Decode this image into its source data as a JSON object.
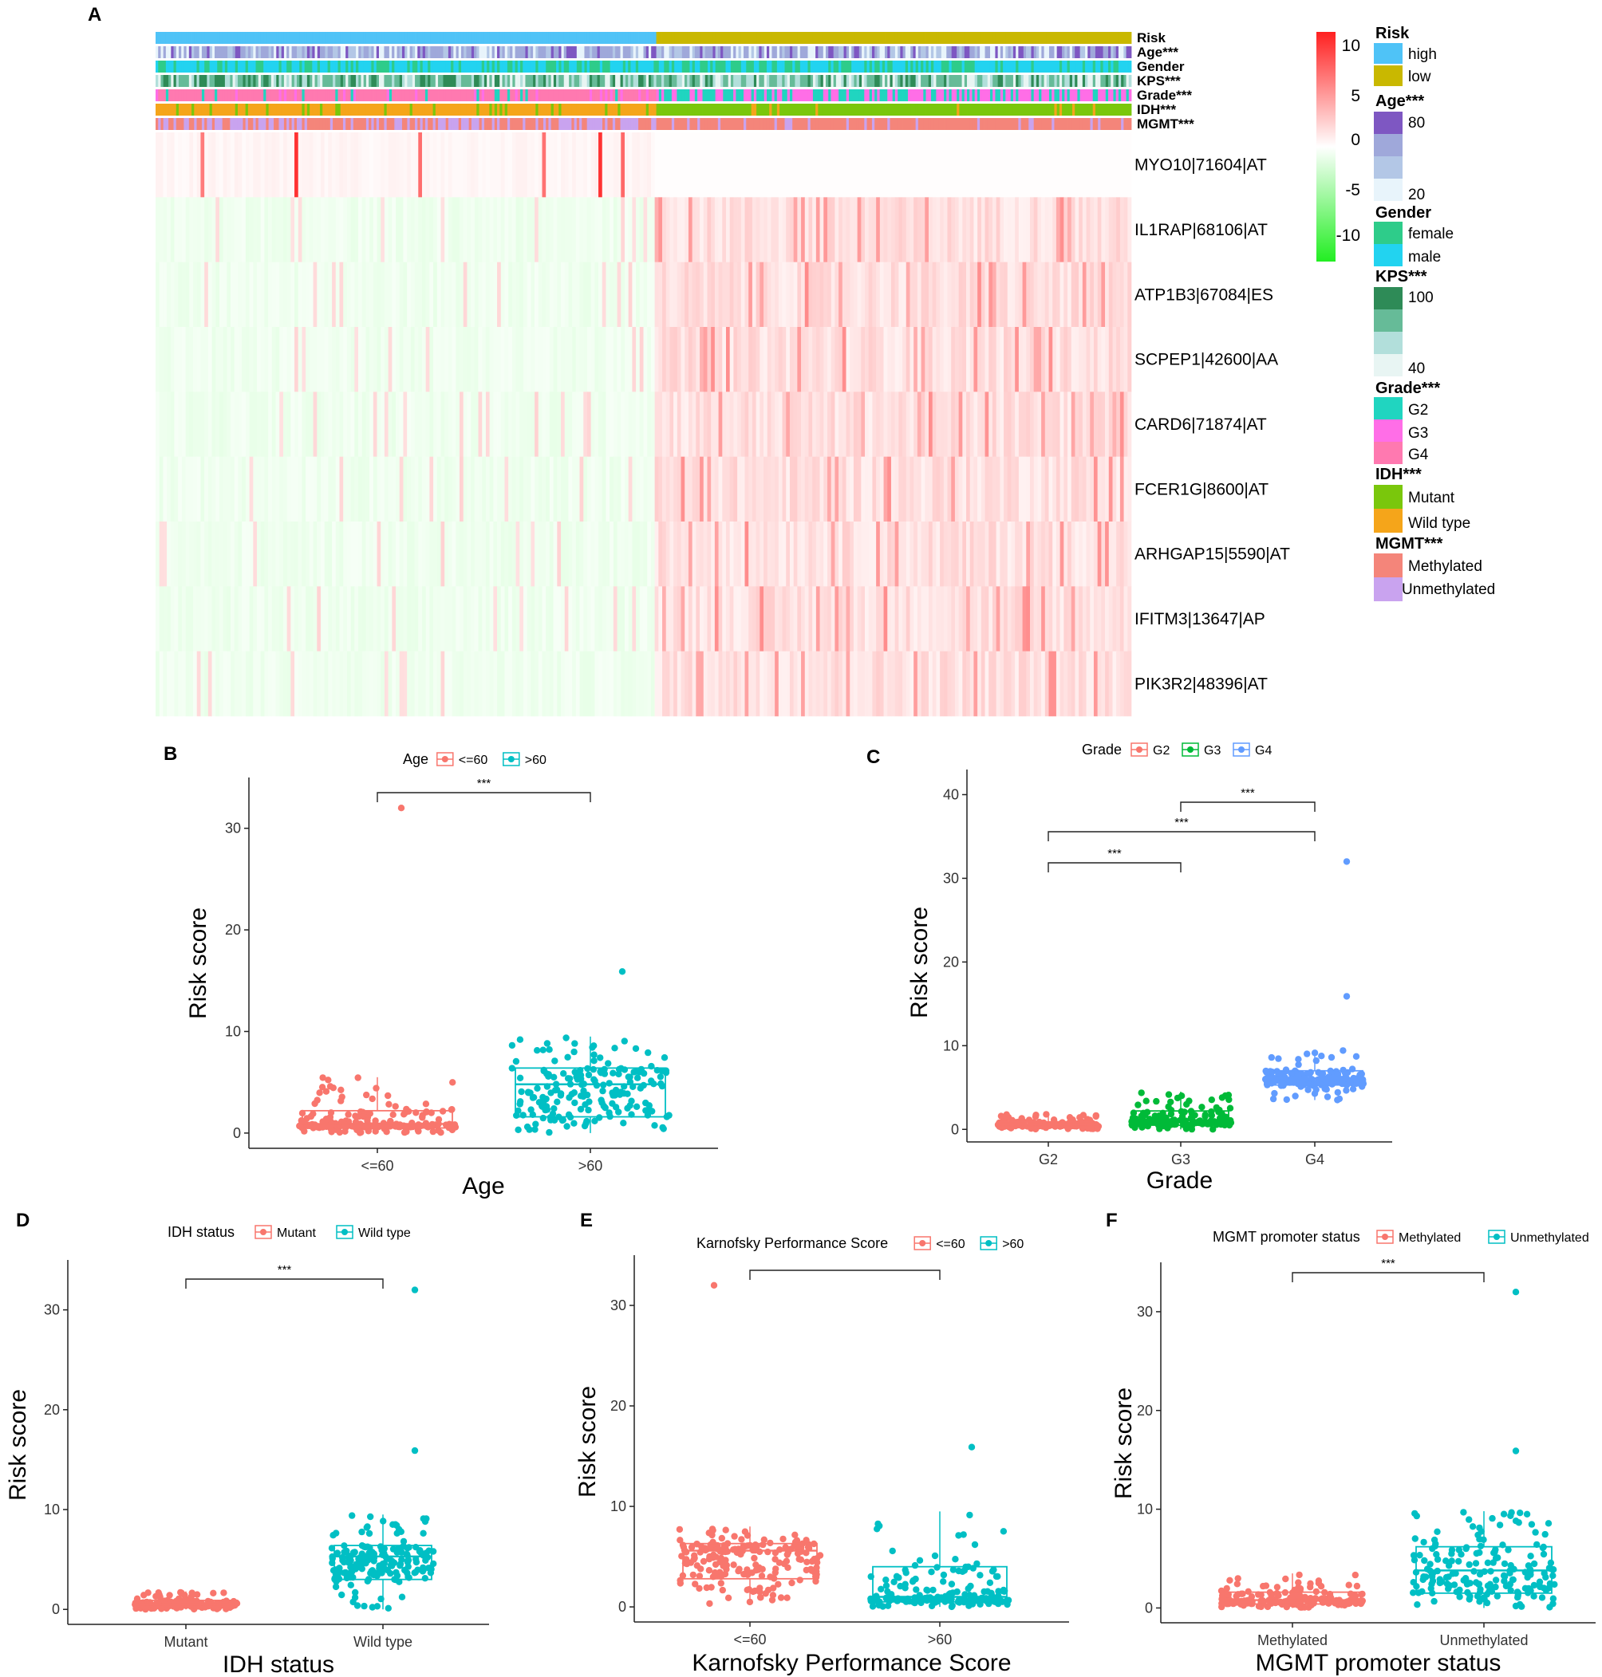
{
  "figure": {
    "description_free": true
  },
  "colors": {
    "risk_high": "#4fc3f7",
    "risk_low": "#c9b800",
    "age_80": "#7e57c2",
    "age_60": "#9fa8da",
    "age_40": "#b3c7e6",
    "age_20": "#e8f4fb",
    "gender_female": "#2ecc8a",
    "gender_male": "#22d3f0",
    "kps_100": "#2e8b57",
    "kps_80": "#66bb98",
    "kps_60": "#b2dfdb",
    "kps_40": "#e8f5f3",
    "grade_g2": "#20d5c0",
    "grade_g3": "#ff6ee7",
    "grade_g4": "#ff79b0",
    "idh_mutant": "#7ac70c",
    "idh_wild": "#f5a51a",
    "mgmt_meth": "#f4857a",
    "mgmt_unmeth": "#c9a3ef",
    "box_red": "#f8766d",
    "box_teal": "#00bfc4",
    "box_green": "#00ba38",
    "box_blue": "#619cff",
    "heat_high": "#ff2020",
    "heat_mid": "#ffffff",
    "heat_low": "#22ee22"
  },
  "panel_a": {
    "letter": "A",
    "annotation_rows": [
      "Risk",
      "Age***",
      "Gender",
      "KPS***",
      "Grade***",
      "IDH***",
      "MGMT***"
    ],
    "genes": [
      "MYO10|71604|AT",
      "IL1RAP|68106|AT",
      "ATP1B3|67084|ES",
      "SCPEP1|42600|AA",
      "CARD6|71874|AT",
      "FCER1G|8600|AT",
      "ARHGAP15|5590|AT",
      "IFITM3|13647|AP",
      "PIK3R2|48396|AT"
    ],
    "colorbar_ticks": [
      "10",
      "5",
      "0",
      "-5",
      "-10"
    ],
    "legend": {
      "risk": {
        "title": "Risk",
        "items": [
          "high",
          "low"
        ]
      },
      "age": {
        "title": "Age***",
        "items": [
          "80",
          "20"
        ]
      },
      "gender": {
        "title": "Gender",
        "items": [
          "female",
          "male"
        ]
      },
      "kps": {
        "title": "KPS***",
        "items": [
          "100",
          "40"
        ]
      },
      "grade": {
        "title": "Grade***",
        "items": [
          "G2",
          "G3",
          "G4"
        ]
      },
      "idh": {
        "title": "IDH***",
        "items": [
          "Mutant",
          "Wild type"
        ]
      },
      "mgmt": {
        "title": "MGMT***",
        "items": [
          "Methylated",
          "Unmethylated"
        ]
      }
    }
  },
  "chart_data": [
    {
      "panel": "B",
      "type": "box",
      "legend_title": "Age",
      "legend_items": [
        "<=60",
        ">60"
      ],
      "categories": [
        "<=60",
        ">60"
      ],
      "series": [
        {
          "name": "<=60",
          "min": 0,
          "q1": 0.5,
          "median": 0.9,
          "q3": 2.2,
          "max": 5.5,
          "outliers": [
            32
          ]
        },
        {
          "name": ">60",
          "min": 0,
          "q1": 1.6,
          "median": 4.8,
          "q3": 6.4,
          "max": 9.5,
          "outliers": [
            15.9
          ]
        }
      ],
      "ylabel": "Risk score",
      "xlabel": "Age",
      "ylim": [
        -1.5,
        35
      ],
      "yticks": [
        "0",
        "10",
        "20",
        "30"
      ],
      "significance": [
        {
          "from": "<=60",
          "to": ">60",
          "label": "***"
        }
      ]
    },
    {
      "panel": "C",
      "type": "box",
      "legend_title": "Grade",
      "legend_items": [
        "G2",
        "G3",
        "G4"
      ],
      "categories": [
        "G2",
        "G3",
        "G4"
      ],
      "series": [
        {
          "name": "G2",
          "min": 0,
          "q1": 0.3,
          "median": 0.6,
          "q3": 0.9,
          "max": 1.8,
          "outliers": []
        },
        {
          "name": "G3",
          "min": 0,
          "q1": 0.5,
          "median": 1.1,
          "q3": 2.2,
          "max": 4.5,
          "outliers": []
        },
        {
          "name": "G4",
          "min": 3.5,
          "q1": 5.3,
          "median": 6.1,
          "q3": 7.0,
          "max": 9.5,
          "outliers": [
            15.9,
            32
          ]
        }
      ],
      "ylabel": "Risk score",
      "xlabel": "Grade",
      "ylim": [
        -1.5,
        43
      ],
      "yticks": [
        "0",
        "10",
        "20",
        "30",
        "40"
      ],
      "significance": [
        {
          "from": "G3",
          "to": "G4",
          "label": "***"
        },
        {
          "from": "G2",
          "to": "G4",
          "label": "***"
        },
        {
          "from": "G2",
          "to": "G3",
          "label": "***"
        }
      ]
    },
    {
      "panel": "D",
      "type": "box",
      "legend_title": "IDH status",
      "legend_items": [
        "Mutant",
        "Wild type"
      ],
      "categories": [
        "Mutant",
        "Wild type"
      ],
      "series": [
        {
          "name": "Mutant",
          "min": 0,
          "q1": 0.3,
          "median": 0.5,
          "q3": 0.9,
          "max": 1.8,
          "outliers": []
        },
        {
          "name": "Wild type",
          "min": 0,
          "q1": 3.0,
          "median": 5.3,
          "q3": 6.4,
          "max": 9.5,
          "outliers": [
            15.9,
            32
          ]
        }
      ],
      "ylabel": "Risk score",
      "xlabel": "IDH status",
      "ylim": [
        -1.5,
        35
      ],
      "yticks": [
        "0",
        "10",
        "20",
        "30"
      ],
      "significance": [
        {
          "from": "Mutant",
          "to": "Wild type",
          "label": "***"
        }
      ]
    },
    {
      "panel": "E",
      "type": "box",
      "legend_title": "Karnofsky Performance Score",
      "legend_items": [
        "<=60",
        ">60"
      ],
      "categories": [
        "<=60",
        ">60"
      ],
      "series": [
        {
          "name": "<=60",
          "min": 0.3,
          "q1": 2.8,
          "median": 5.6,
          "q3": 6.3,
          "max": 8.0,
          "outliers": [
            32
          ]
        },
        {
          "name": ">60",
          "min": 0,
          "q1": 0.5,
          "median": 1.0,
          "q3": 4.0,
          "max": 9.5,
          "outliers": [
            15.9
          ]
        }
      ],
      "ylabel": "Risk score",
      "xlabel": "Karnofsky Performance Score",
      "ylim": [
        -1.5,
        35
      ],
      "yticks": [
        "0",
        "10",
        "20",
        "30"
      ],
      "significance": [
        {
          "from": "<=60",
          "to": ">60",
          "label": ""
        }
      ]
    },
    {
      "panel": "F",
      "type": "box",
      "legend_title": "MGMT promoter status",
      "legend_items": [
        "Methylated",
        "Unmethylated"
      ],
      "categories": [
        "Methylated",
        "Unmethylated"
      ],
      "series": [
        {
          "name": "Methylated",
          "min": 0,
          "q1": 0.4,
          "median": 0.8,
          "q3": 1.6,
          "max": 3.5,
          "outliers": []
        },
        {
          "name": "Unmethylated",
          "min": 0,
          "q1": 1.5,
          "median": 3.8,
          "q3": 6.2,
          "max": 9.8,
          "outliers": [
            15.9,
            32
          ]
        }
      ],
      "ylabel": "Risk score",
      "xlabel": "MGMT promoter status",
      "ylim": [
        -1.5,
        35
      ],
      "yticks": [
        "0",
        "10",
        "20",
        "30"
      ],
      "significance": [
        {
          "from": "Methylated",
          "to": "Unmethylated",
          "label": "***"
        }
      ]
    }
  ]
}
